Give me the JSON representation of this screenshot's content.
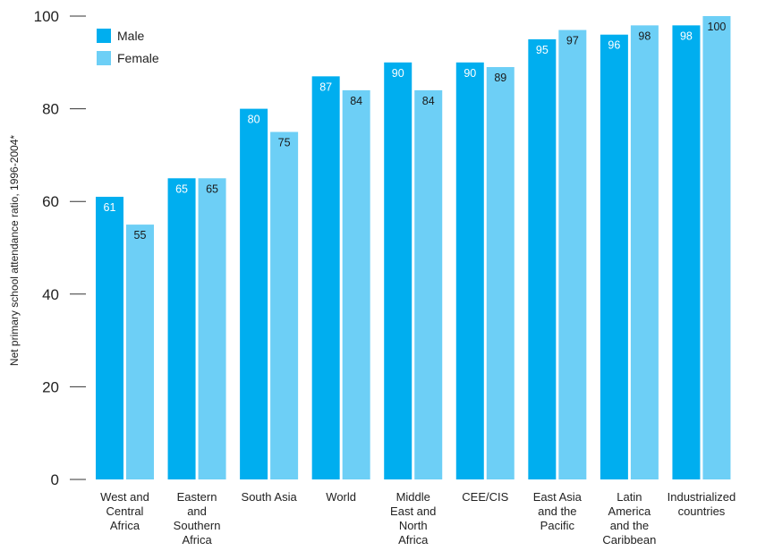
{
  "chart_data": {
    "type": "bar",
    "ylabel": "Net primary school attendance ratio, 1996-2004*",
    "xlabel": "",
    "ylim": [
      0,
      100
    ],
    "yticks": [
      0,
      20,
      40,
      60,
      80,
      100
    ],
    "grid": false,
    "legend_position": "top-left",
    "categories": [
      [
        "West and",
        "Central",
        "Africa"
      ],
      [
        "Eastern",
        "and",
        "Southern",
        "Africa"
      ],
      [
        "South Asia"
      ],
      [
        "World"
      ],
      [
        "Middle",
        "East and",
        "North",
        "Africa"
      ],
      [
        "CEE/CIS"
      ],
      [
        "East Asia",
        "and the",
        "Pacific"
      ],
      [
        "Latin",
        "America",
        "and the",
        "Caribbean"
      ],
      [
        "Industrialized",
        "countries"
      ]
    ],
    "series": [
      {
        "name": "Male",
        "color": "#00aeef",
        "label_color": "#ffffff",
        "values": [
          61,
          65,
          80,
          87,
          90,
          90,
          95,
          96,
          98
        ]
      },
      {
        "name": "Female",
        "color": "#6dcff6",
        "label_color": "#1a1a1a",
        "values": [
          55,
          65,
          75,
          84,
          84,
          89,
          97,
          98,
          100
        ]
      }
    ]
  }
}
